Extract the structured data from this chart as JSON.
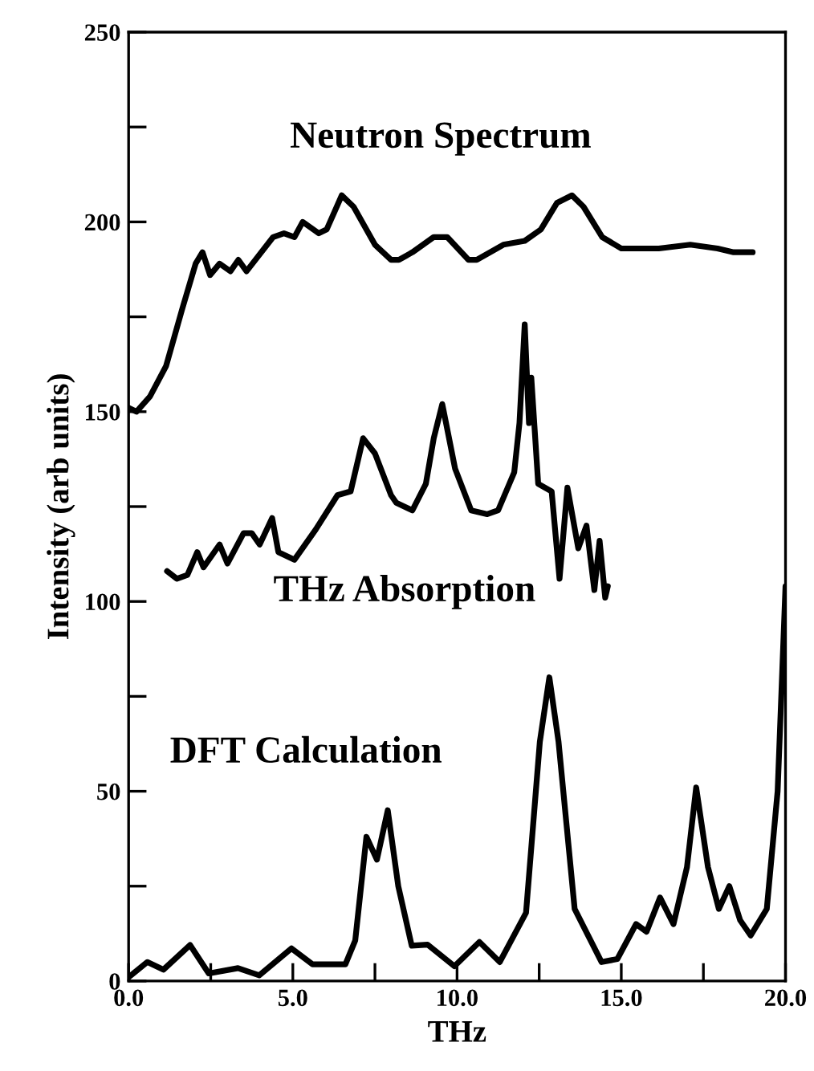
{
  "chart_data": {
    "type": "line",
    "xlabel": "THz",
    "ylabel": "Intensity (arb units)",
    "xlim": [
      0,
      20
    ],
    "ylim": [
      0,
      250
    ],
    "xticks": [
      {
        "value": 0,
        "label": "0.0"
      },
      {
        "value": 2.5,
        "label": null
      },
      {
        "value": 5,
        "label": "5.0"
      },
      {
        "value": 7.5,
        "label": null
      },
      {
        "value": 10,
        "label": "10.0"
      },
      {
        "value": 12.5,
        "label": null
      },
      {
        "value": 15,
        "label": "15.0"
      },
      {
        "value": 17.5,
        "label": null
      },
      {
        "value": 20,
        "label": "20.0"
      }
    ],
    "yticks": [
      0,
      {
        "value": 25,
        "label": null
      },
      50,
      {
        "value": 75,
        "label": null
      },
      100,
      {
        "value": 125,
        "label": null
      },
      150,
      {
        "value": 175,
        "label": null
      },
      200,
      {
        "value": 225,
        "label": null
      },
      250
    ],
    "grid": false,
    "legend": false,
    "marker": "none",
    "line_style": "solid",
    "series": [
      {
        "name": "Neutron Spectrum",
        "color": "#000000",
        "x": [
          0,
          0.24,
          0.65,
          1.14,
          1.63,
          2.04,
          2.25,
          2.48,
          2.77,
          3.1,
          3.34,
          3.59,
          4.4,
          4.73,
          5.05,
          5.3,
          5.79,
          6.03,
          6.49,
          6.85,
          7.5,
          7.99,
          8.23,
          8.64,
          9.29,
          9.7,
          10.35,
          10.6,
          11.41,
          12.06,
          12.55,
          13.04,
          13.5,
          13.85,
          14.42,
          15.0,
          15.8,
          16.14,
          17.1,
          17.93,
          18.42,
          19.0
        ],
        "values": [
          151,
          150,
          154,
          162,
          177,
          189,
          192,
          186,
          189,
          187,
          190,
          187,
          196,
          197,
          196,
          200,
          197,
          198,
          207,
          204,
          194,
          190,
          190,
          192,
          196,
          196,
          190,
          190,
          194,
          195,
          198,
          205,
          207,
          204,
          196,
          193,
          193,
          193,
          194,
          193,
          192,
          192
        ]
      },
      {
        "name": "THz Absorption",
        "color": "#000000",
        "x": [
          1.17,
          1.47,
          1.79,
          2.09,
          2.28,
          2.77,
          3.01,
          3.5,
          3.75,
          3.99,
          4.37,
          4.56,
          5.05,
          5.7,
          6.36,
          6.76,
          7.14,
          7.5,
          7.99,
          8.15,
          8.64,
          9.05,
          9.29,
          9.55,
          9.94,
          10.43,
          10.92,
          11.25,
          11.74,
          11.9,
          12.06,
          12.19,
          12.26,
          12.47,
          12.88,
          13.12,
          13.36,
          13.69,
          13.94,
          14.18,
          14.34,
          14.51,
          14.59
        ],
        "values": [
          108,
          106,
          107,
          113,
          109,
          115,
          110,
          118,
          118,
          115,
          122,
          113,
          111,
          119,
          128,
          129,
          143,
          139,
          128,
          126,
          124,
          131,
          143,
          152,
          135,
          124,
          123,
          124,
          134,
          147,
          173,
          147,
          159,
          131,
          129,
          106,
          130,
          114,
          120,
          103,
          116,
          101,
          104
        ]
      },
      {
        "name": "DFT Calculation",
        "color": "#000000",
        "x": [
          0,
          0.57,
          1.06,
          1.87,
          2.44,
          3.33,
          3.98,
          4.96,
          5.6,
          6.6,
          6.9,
          7.24,
          7.56,
          7.89,
          8.21,
          8.62,
          9.1,
          9.92,
          10.68,
          11.3,
          12.1,
          12.52,
          12.81,
          13.09,
          13.58,
          14.4,
          14.88,
          15.45,
          15.77,
          16.18,
          16.59,
          17.0,
          17.28,
          17.64,
          17.97,
          18.29,
          18.62,
          18.94,
          19.43,
          19.76,
          20.0
        ],
        "values": [
          1,
          5,
          3,
          9.5,
          2,
          3.4,
          1.5,
          8.6,
          4.4,
          4.4,
          10.7,
          38,
          32,
          45,
          25,
          9.3,
          9.6,
          3.9,
          10.3,
          5,
          18,
          63,
          80,
          63,
          19,
          5,
          5.8,
          15,
          13,
          22,
          15,
          30,
          51,
          30,
          19,
          25,
          16,
          12,
          19,
          50,
          104
        ]
      }
    ]
  }
}
